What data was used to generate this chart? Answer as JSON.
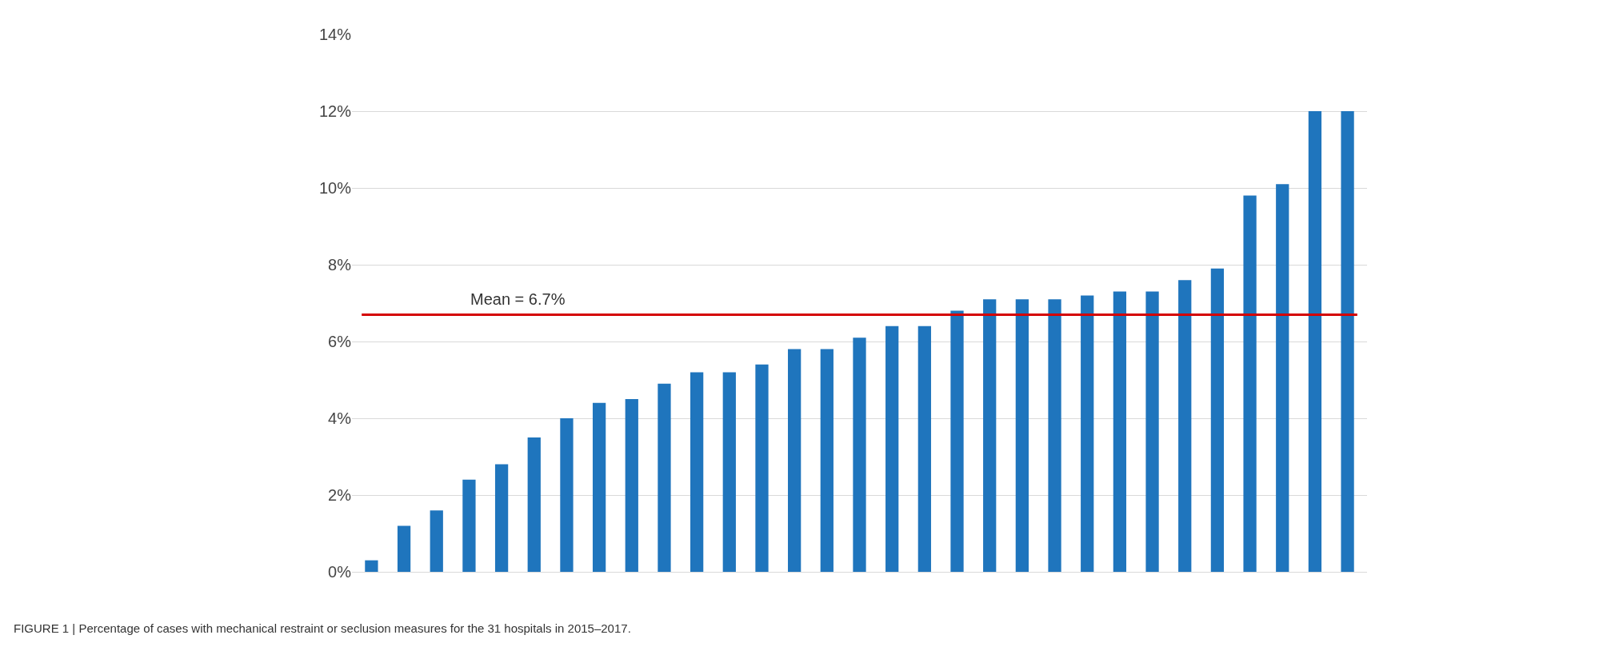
{
  "chart_data": {
    "type": "bar",
    "categories": [
      null,
      null,
      null,
      null,
      null,
      null,
      null,
      null,
      null,
      null,
      null,
      null,
      null,
      null,
      null,
      null,
      null,
      null,
      null,
      null,
      null,
      null,
      null,
      null,
      null,
      null,
      null,
      null,
      null,
      null,
      null
    ],
    "values": [
      0.3,
      1.2,
      1.6,
      2.4,
      2.8,
      3.5,
      4.0,
      4.4,
      4.5,
      4.9,
      5.2,
      5.2,
      5.4,
      5.8,
      5.8,
      6.1,
      6.4,
      6.4,
      6.8,
      7.1,
      7.1,
      7.1,
      7.2,
      7.3,
      7.3,
      7.6,
      7.9,
      9.8,
      10.1,
      12.0,
      12.0
    ],
    "color": "#1f75bd",
    "ylim": [
      0,
      14
    ],
    "yticks": [
      {
        "value": 0,
        "label": "0%"
      },
      {
        "value": 2,
        "label": "2%"
      },
      {
        "value": 4,
        "label": "4%"
      },
      {
        "value": 6,
        "label": "6%"
      },
      {
        "value": 8,
        "label": "8%"
      },
      {
        "value": 10,
        "label": "10%"
      },
      {
        "value": 12,
        "label": "12%"
      },
      {
        "value": 14,
        "label": "14%"
      }
    ],
    "grid": "y",
    "ref_lines": [
      {
        "axis": "y",
        "value": 6.7,
        "label": "Mean = 6.7%",
        "color": "#d40000"
      }
    ],
    "annotations": [
      "FIGURE 1 | Percentage of cases with mechanical restraint or seclusion measures for the 31 hospitals in 2015–2017."
    ]
  }
}
